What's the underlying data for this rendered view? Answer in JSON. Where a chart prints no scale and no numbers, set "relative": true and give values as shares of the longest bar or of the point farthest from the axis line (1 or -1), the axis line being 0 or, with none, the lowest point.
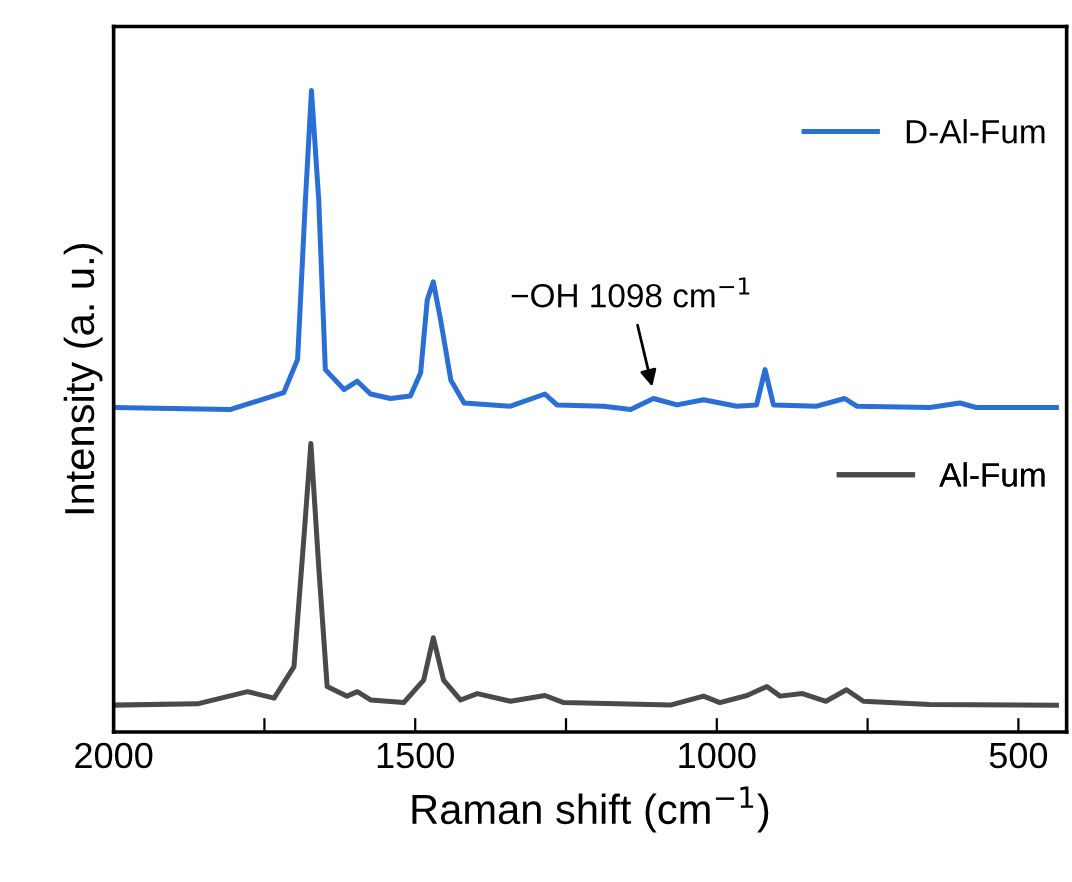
{
  "chart_data": {
    "type": "line",
    "relative": true,
    "xlabel": "Raman shift (cm$^{−1}$)",
    "ylabel": "Intensity (a. u.)",
    "xlim": [
      2000,
      420
    ],
    "xticks": [
      2000,
      {
        "value": 1750,
        "label": null
      },
      1500,
      {
        "value": 1250,
        "label": null
      },
      1000,
      {
        "value": 750,
        "label": null
      },
      500
    ],
    "tick_labels": "x",
    "grid": false,
    "legend": "right",
    "line_style": "solid",
    "marker": "none",
    "annotations": [
      {
        "text": "−OH 1098 cm$^{−1}$",
        "x": 1105,
        "y": 0.53
      }
    ],
    "series": [
      {
        "name": "D-Al-Fum",
        "color": "#2a6fd6",
        "x": [
          2000,
          1806,
          1718,
          1695,
          1682,
          1672,
          1660,
          1649,
          1618,
          1596,
          1574,
          1541,
          1508,
          1491,
          1480,
          1470,
          1458,
          1441,
          1419,
          1342,
          1285,
          1265,
          1188,
          1143,
          1105,
          1066,
          1022,
          967,
          934,
          920,
          906,
          834,
          788,
          768,
          647,
          597,
          570,
          437
        ],
        "values": [
          0.506,
          0.503,
          0.529,
          0.581,
          0.83,
          1.0,
          0.83,
          0.565,
          0.534,
          0.547,
          0.527,
          0.52,
          0.524,
          0.56,
          0.674,
          0.702,
          0.643,
          0.549,
          0.513,
          0.508,
          0.527,
          0.51,
          0.508,
          0.503,
          0.52,
          0.51,
          0.518,
          0.508,
          0.51,
          0.565,
          0.51,
          0.508,
          0.52,
          0.508,
          0.506,
          0.513,
          0.506,
          0.506
        ]
      },
      {
        "name": "Al-Fum",
        "color": "#4a4a4a",
        "x": [
          2000,
          1861,
          1778,
          1734,
          1701,
          1684,
          1673,
          1660,
          1646,
          1613,
          1596,
          1574,
          1519,
          1486,
          1470,
          1453,
          1425,
          1397,
          1342,
          1285,
          1254,
          1077,
          1022,
          995,
          950,
          917,
          895,
          858,
          819,
          785,
          757,
          647,
          437
        ],
        "values": [
          0.042,
          0.044,
          0.063,
          0.053,
          0.102,
          0.31,
          0.45,
          0.258,
          0.071,
          0.056,
          0.063,
          0.05,
          0.046,
          0.081,
          0.147,
          0.081,
          0.05,
          0.06,
          0.048,
          0.057,
          0.046,
          0.042,
          0.056,
          0.046,
          0.057,
          0.071,
          0.056,
          0.06,
          0.048,
          0.066,
          0.048,
          0.043,
          0.042
        ]
      }
    ]
  }
}
